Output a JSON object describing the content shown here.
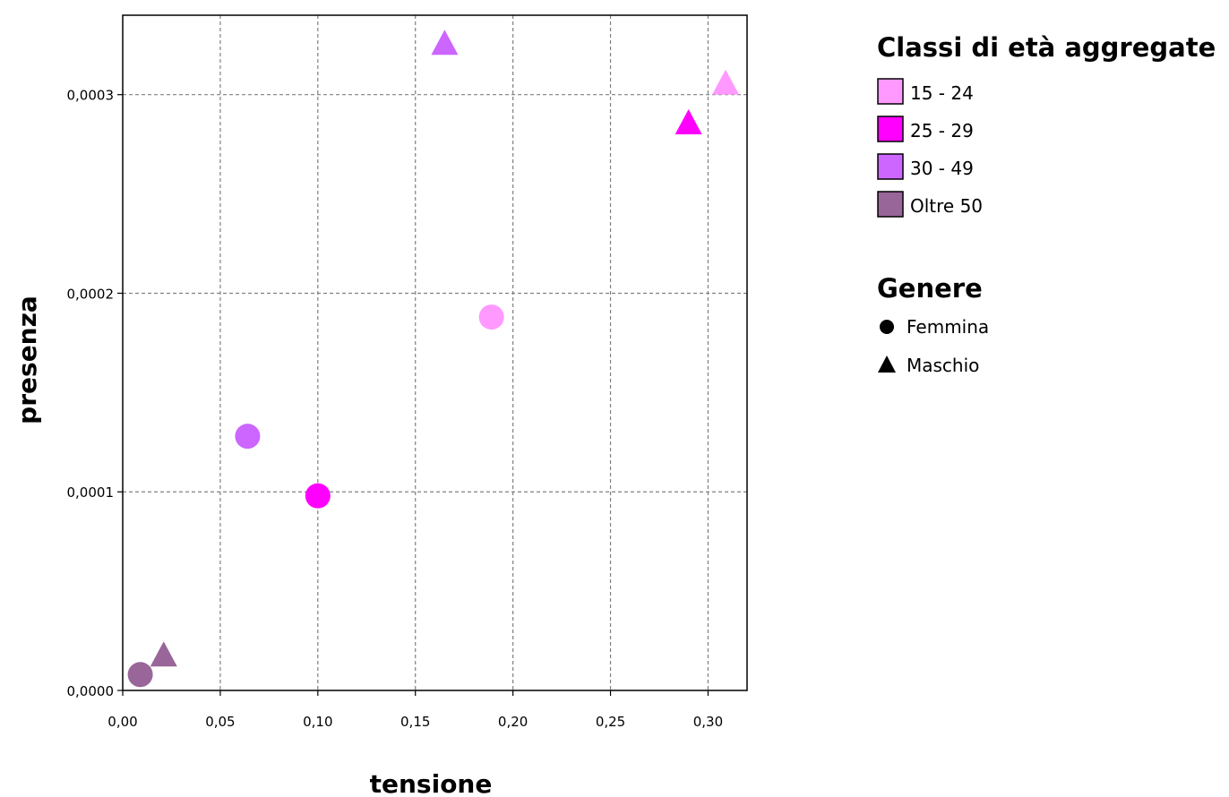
{
  "chart_data": {
    "type": "scatter",
    "xlabel": "tensione",
    "ylabel": "presenza",
    "xlim": [
      0,
      0.32
    ],
    "ylim": [
      0,
      0.00034
    ],
    "x_ticks": [
      0,
      0.05,
      0.1,
      0.15,
      0.2,
      0.25,
      0.3
    ],
    "x_tick_labels": [
      "0,00",
      "0,05",
      "0,10",
      "0,15",
      "0,20",
      "0,25",
      "0,30"
    ],
    "y_ticks": [
      0,
      0.0001,
      0.0002,
      0.0003
    ],
    "y_tick_labels": [
      "0,0000",
      "0,0001",
      "0,0002",
      "0,0003"
    ],
    "grid": true,
    "legend_placement": "right",
    "color_legend": {
      "title": "Classi di età aggregate",
      "items": [
        {
          "label": "15 - 24",
          "color": "#ff99ff"
        },
        {
          "label": "25 - 29",
          "color": "#ff00ff"
        },
        {
          "label": "30 - 49",
          "color": "#cc66ff"
        },
        {
          "label": "Oltre 50",
          "color": "#996699"
        }
      ]
    },
    "shape_legend": {
      "title": "Genere",
      "items": [
        {
          "label": "Femmina",
          "shape": "circle"
        },
        {
          "label": "Maschio",
          "shape": "triangle"
        }
      ]
    },
    "points": [
      {
        "x": 0.189,
        "y": 0.000188,
        "age_group": "15 - 24",
        "gender": "Femmina"
      },
      {
        "x": 0.309,
        "y": 0.000305,
        "age_group": "15 - 24",
        "gender": "Maschio"
      },
      {
        "x": 0.1,
        "y": 9.8e-05,
        "age_group": "25 - 29",
        "gender": "Femmina"
      },
      {
        "x": 0.29,
        "y": 0.000285,
        "age_group": "25 - 29",
        "gender": "Maschio"
      },
      {
        "x": 0.064,
        "y": 0.000128,
        "age_group": "30 - 49",
        "gender": "Femmina"
      },
      {
        "x": 0.165,
        "y": 0.000325,
        "age_group": "30 - 49",
        "gender": "Maschio"
      },
      {
        "x": 0.009,
        "y": 8e-06,
        "age_group": "Oltre 50",
        "gender": "Femmina"
      },
      {
        "x": 0.021,
        "y": 1.7e-05,
        "age_group": "Oltre 50",
        "gender": "Maschio"
      }
    ]
  }
}
